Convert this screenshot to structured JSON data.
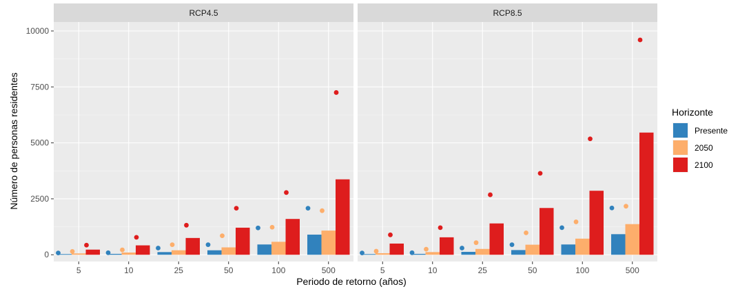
{
  "chart_data": {
    "type": "bar",
    "xlabel": "Periodo de retorno (años)",
    "ylabel": "Número de personas residentes",
    "ylim": [
      -300,
      10400
    ],
    "yticks": [
      0,
      2500,
      5000,
      7500,
      10000
    ],
    "categories": [
      "5",
      "10",
      "25",
      "50",
      "100",
      "500"
    ],
    "legend": {
      "title": "Horizonte",
      "position": "right",
      "items": [
        {
          "label": "Presente",
          "color": "#3182bd"
        },
        {
          "label": "2050",
          "color": "#fdae6b"
        },
        {
          "label": "2100",
          "color": "#de1d1d"
        }
      ]
    },
    "panels": [
      {
        "title": "RCP4.5",
        "series": [
          {
            "name": "Presente",
            "bars": [
              30,
              40,
              120,
              200,
              460,
              900
            ],
            "points": [
              80,
              90,
              300,
              450,
              1200,
              2080
            ]
          },
          {
            "name": "2050",
            "bars": [
              60,
              100,
              200,
              330,
              580,
              1080
            ],
            "points": [
              150,
              220,
              450,
              850,
              1230,
              1970
            ]
          },
          {
            "name": "2100",
            "bars": [
              230,
              420,
              750,
              1210,
              1600,
              3370
            ],
            "points": [
              430,
              780,
              1320,
              2080,
              2780,
              7250
            ]
          }
        ]
      },
      {
        "title": "RCP8.5",
        "series": [
          {
            "name": "Presente",
            "bars": [
              30,
              40,
              130,
              210,
              460,
              920
            ],
            "points": [
              80,
              90,
              300,
              450,
              1210,
              2090
            ]
          },
          {
            "name": "2050",
            "bars": [
              70,
              120,
              260,
              450,
              720,
              1370
            ],
            "points": [
              160,
              250,
              540,
              980,
              1470,
              2170
            ]
          },
          {
            "name": "2100",
            "bars": [
              500,
              780,
              1400,
              2090,
              2860,
              5460
            ],
            "points": [
              890,
              1210,
              2680,
              3640,
              5180,
              9600
            ]
          }
        ]
      }
    ]
  }
}
